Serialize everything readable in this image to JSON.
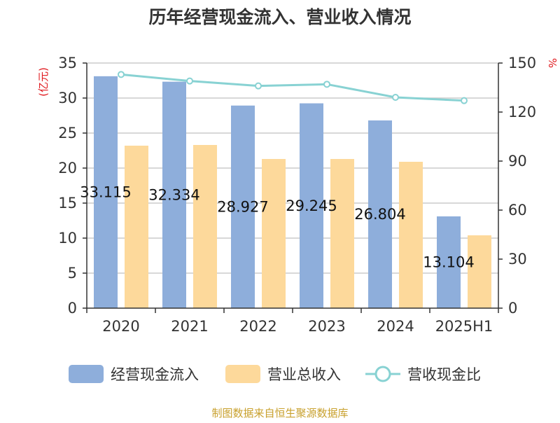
{
  "chart_data": {
    "type": "bar",
    "title": "历年经营现金流入、营业收入情况",
    "categories": [
      "2020",
      "2021",
      "2022",
      "2023",
      "2024",
      "2025H1"
    ],
    "y_left": {
      "unit_label": "(亿元)",
      "range": [
        0,
        35
      ],
      "ticks": [
        "0",
        "5",
        "10",
        "15",
        "20",
        "25",
        "30",
        "35"
      ]
    },
    "y_right": {
      "unit_label": "%",
      "range": [
        0,
        150
      ],
      "ticks": [
        "0",
        "30",
        "60",
        "90",
        "120",
        "150"
      ]
    },
    "series": [
      {
        "name": "经营现金流入",
        "type": "bar",
        "axis": "left",
        "color": "#8eaedb",
        "values": [
          33.115,
          32.334,
          28.927,
          29.245,
          26.804,
          13.104
        ],
        "labels": [
          "33.115",
          "32.334",
          "28.927",
          "29.245",
          "26.804",
          "13.104"
        ]
      },
      {
        "name": "营业总收入",
        "type": "bar",
        "axis": "left",
        "color": "#fdd99b",
        "values": [
          23.2,
          23.3,
          21.3,
          21.3,
          20.9,
          10.4
        ]
      },
      {
        "name": "营收现金比",
        "type": "line",
        "axis": "right",
        "color": "#88d2d3",
        "values": [
          143,
          139,
          136,
          137,
          129,
          127
        ]
      }
    ],
    "grid": true,
    "legend_position": "bottom",
    "source": "制图数据来自恒生聚源数据库"
  }
}
